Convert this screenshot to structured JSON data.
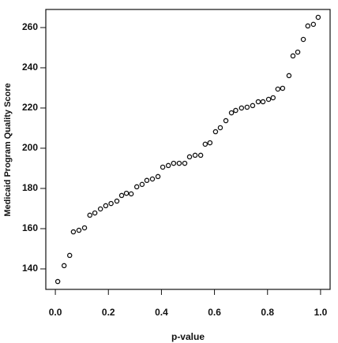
{
  "chart_data": {
    "type": "scatter",
    "x_label": "p-value",
    "y_label": "Medicaid Program Quality Score",
    "xlim": [
      -0.036,
      1.036
    ],
    "ylim": [
      129.8,
      269
    ],
    "xticks": [
      {
        "value": 0,
        "label": "0.0"
      },
      0.2,
      0.4,
      0.6,
      0.8,
      {
        "value": 1,
        "label": "1.0"
      }
    ],
    "yticks": [
      140,
      160,
      180,
      200,
      220,
      240,
      260
    ],
    "color": "#111111",
    "x": [
      0.009,
      0.033,
      0.054,
      0.068,
      0.089,
      0.11,
      0.13,
      0.149,
      0.17,
      0.19,
      0.21,
      0.232,
      0.25,
      0.268,
      0.286,
      0.307,
      0.327,
      0.345,
      0.366,
      0.387,
      0.405,
      0.426,
      0.446,
      0.467,
      0.488,
      0.506,
      0.527,
      0.548,
      0.565,
      0.583,
      0.604,
      0.622,
      0.643,
      0.664,
      0.68,
      0.702,
      0.723,
      0.744,
      0.765,
      0.783,
      0.804,
      0.821,
      0.839,
      0.857,
      0.881,
      0.896,
      0.914,
      0.935,
      0.952,
      0.973,
      0.991
    ],
    "values": [
      133.7,
      141.6,
      146.7,
      158.4,
      159.2,
      160.4,
      166.7,
      167.8,
      169.8,
      171.4,
      172.5,
      173.7,
      176.5,
      177.6,
      177.3,
      180.8,
      182,
      184,
      184.7,
      185.9,
      190.6,
      191.4,
      192.5,
      192.5,
      192.5,
      195.7,
      196.5,
      196.5,
      202,
      202.7,
      208.2,
      210.2,
      213.7,
      217.6,
      218.8,
      220,
      220.4,
      221.2,
      223.1,
      223.1,
      224.3,
      225.1,
      229.4,
      229.8,
      236.1,
      245.9,
      247.8,
      254.1,
      260.8,
      261.6,
      265.1
    ]
  }
}
